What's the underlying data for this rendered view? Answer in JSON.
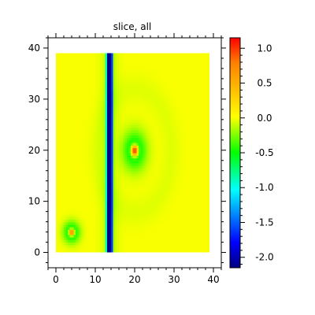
{
  "chart_data": {
    "type": "heatmap",
    "title": "slice, all",
    "xlabel": "",
    "ylabel": "",
    "xlim": [
      -2,
      42
    ],
    "ylim": [
      -3,
      42
    ],
    "data_extent": {
      "x": [
        0,
        39
      ],
      "y": [
        0,
        39
      ]
    },
    "x_ticks": [
      0,
      10,
      20,
      30,
      40
    ],
    "y_ticks": [
      0,
      10,
      20,
      30,
      40
    ],
    "x_tick_labels": [
      "0",
      "10",
      "20",
      "30",
      "40"
    ],
    "y_tick_labels": [
      "0",
      "10",
      "20",
      "30",
      "40"
    ],
    "features": [
      {
        "kind": "vertical-band",
        "x_center": 13.6,
        "width": 1.5,
        "min_value": -2.1
      },
      {
        "kind": "radial-peak",
        "x": 20,
        "y": 20,
        "peak": 1.1,
        "sign_change": "negative ring around positive center"
      },
      {
        "kind": "radial-peak",
        "x": 4,
        "y": 4,
        "peak": 0.9,
        "sign_change": "negative ring around positive center"
      }
    ],
    "background_value": 0.0,
    "colorbar": {
      "range": [
        -2.15,
        1.15
      ],
      "ticks": [
        1.0,
        0.5,
        0.0,
        -0.5,
        -1.0,
        -1.5,
        -2.0
      ],
      "tick_labels": [
        "1.0",
        "0.5",
        "0.0",
        "-0.5",
        "-1.0",
        "-1.5",
        "-2.0"
      ],
      "colormap": "jet",
      "colors": [
        "#000080",
        "#0000ff",
        "#00ffff",
        "#00ff00",
        "#ffff00",
        "#ff8000",
        "#ff0000"
      ]
    },
    "grid": false
  }
}
